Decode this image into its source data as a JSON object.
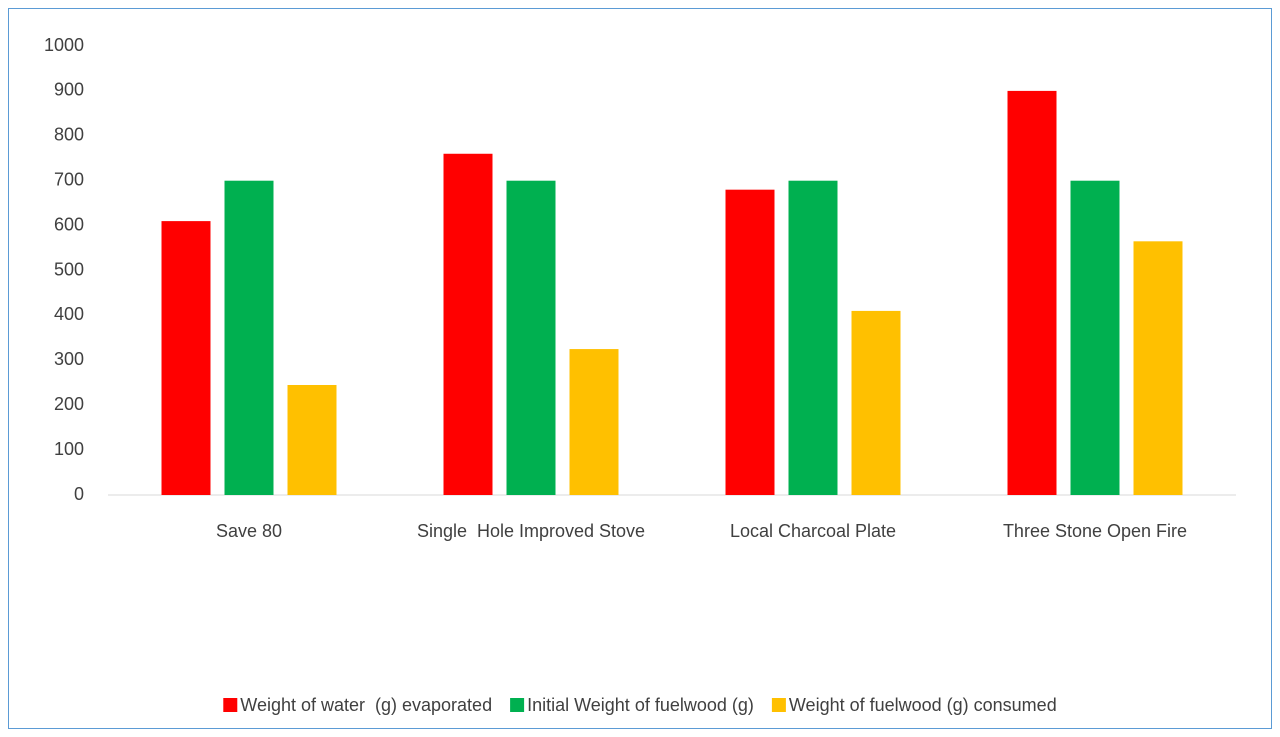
{
  "chart_data": {
    "type": "bar",
    "categories": [
      "Save 80",
      "Single  Hole Improved Stove",
      "Local Charcoal Plate",
      "Three Stone Open Fire"
    ],
    "series": [
      {
        "name": "Weight of water  (g) evaporated",
        "color": "#ff0000",
        "values": [
          610,
          760,
          680,
          900
        ]
      },
      {
        "name": "Initial Weight of fuelwood (g)",
        "color": "#00b050",
        "values": [
          700,
          700,
          700,
          700
        ]
      },
      {
        "name": "Weight of fuelwood (g) consumed",
        "color": "#ffc000",
        "values": [
          245,
          325,
          410,
          565
        ]
      }
    ],
    "ylim": [
      0,
      1000
    ],
    "yticks": [
      0,
      100,
      200,
      300,
      400,
      500,
      600,
      700,
      800,
      900,
      1000
    ],
    "legend": "bottom"
  }
}
